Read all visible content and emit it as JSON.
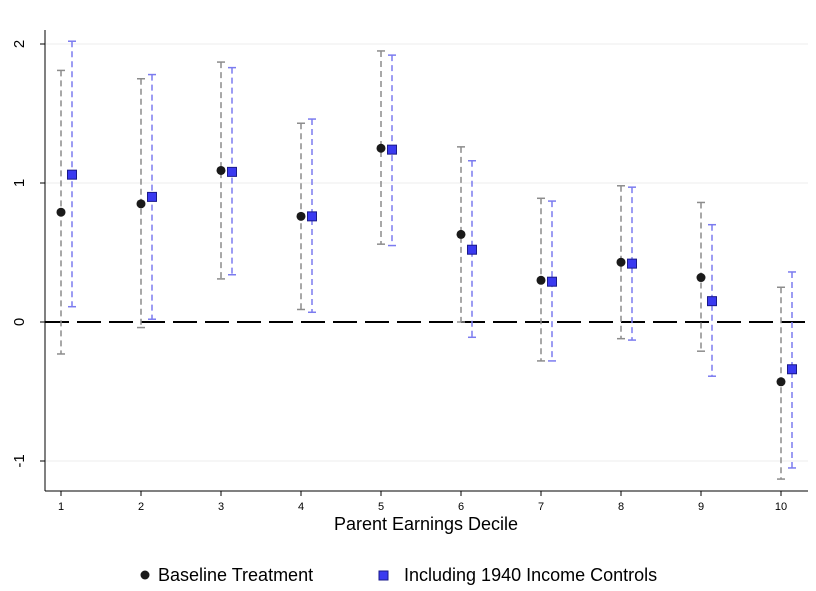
{
  "chart_data": {
    "type": "scatter",
    "title": "",
    "xlabel": "Parent Earnings Decile",
    "ylabel": "",
    "x": [
      "1",
      "2",
      "3",
      "4",
      "5",
      "6",
      "7",
      "8",
      "9",
      "10"
    ],
    "xlim": [
      0.9,
      10.2
    ],
    "ylim": [
      -1.2,
      2.1
    ],
    "yticks": [
      "-1",
      "0",
      "1",
      "2"
    ],
    "grid": true,
    "reference_line_y": 0,
    "legend_position": "bottom",
    "series": [
      {
        "name": "Baseline Treatment",
        "marker": "circle",
        "color": "#1a1a1a",
        "ci_color": "#8c8c8c",
        "values": [
          0.79,
          0.85,
          1.09,
          0.76,
          1.25,
          0.63,
          0.3,
          0.43,
          0.32,
          -0.43
        ],
        "ci_low": [
          -0.23,
          -0.04,
          0.31,
          0.09,
          0.56,
          0.0,
          -0.28,
          -0.12,
          -0.21,
          -1.13
        ],
        "ci_high": [
          1.81,
          1.75,
          1.87,
          1.43,
          1.95,
          1.26,
          0.89,
          0.98,
          0.86,
          0.25
        ]
      },
      {
        "name": "Including 1940 Income Controls",
        "marker": "square",
        "color": "#3a3af0",
        "ci_color": "#7b7bef",
        "values": [
          1.06,
          0.9,
          1.08,
          0.76,
          1.24,
          0.52,
          0.29,
          0.42,
          0.15,
          -0.34
        ],
        "ci_low": [
          0.11,
          0.02,
          0.34,
          0.07,
          0.55,
          -0.11,
          -0.28,
          -0.13,
          -0.39,
          -1.05
        ],
        "ci_high": [
          2.02,
          1.78,
          1.83,
          1.46,
          1.92,
          1.16,
          0.87,
          0.97,
          0.7,
          0.36
        ]
      }
    ]
  }
}
